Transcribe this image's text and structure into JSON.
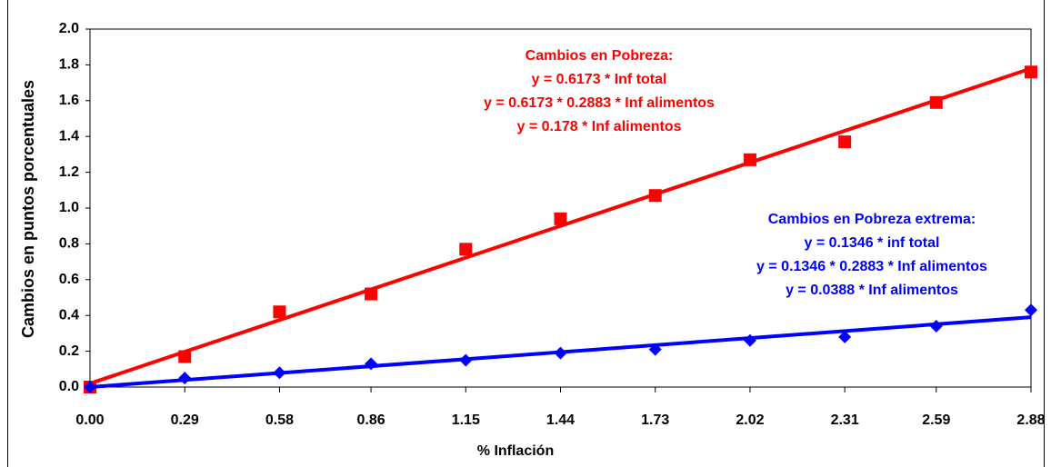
{
  "chart_data": {
    "type": "scatter",
    "x_label": "% Inflación",
    "y_label": "Cambios en puntos porcentuales",
    "x": [
      0,
      0.29,
      0.58,
      0.86,
      1.15,
      1.44,
      1.73,
      2.02,
      2.31,
      2.59,
      2.88
    ],
    "xlim": [
      0,
      2.88
    ],
    "xticks": [
      {
        "value": 0,
        "label": "0.00"
      },
      0.29,
      0.58,
      0.86,
      1.15,
      1.44,
      1.73,
      2.02,
      2.31,
      2.59,
      2.88
    ],
    "ylim": [
      0,
      2
    ],
    "yticks": [
      {
        "value": 0,
        "label": "0.0"
      },
      0.2,
      0.4,
      0.6,
      0.8,
      {
        "value": 1,
        "label": "1.0"
      },
      1.2,
      1.4,
      1.6,
      1.8,
      {
        "value": 2,
        "label": "2.0"
      }
    ],
    "grid": false,
    "series": [
      {
        "name": "Cambios en Pobreza",
        "color": "#ff0000",
        "marker": "square",
        "values": [
          0,
          0.17,
          0.42,
          0.52,
          0.77,
          0.94,
          1.07,
          1.27,
          1.37,
          1.59,
          1.76
        ],
        "trendline": {
          "x": [
            0,
            2.88
          ],
          "values": [
            0.02,
            1.78
          ]
        }
      },
      {
        "name": "Cambios en Pobreza extrema",
        "color": "#0000ff",
        "marker": "diamond",
        "values": [
          0,
          0.05,
          0.08,
          0.13,
          0.15,
          0.19,
          0.21,
          0.26,
          0.28,
          0.34,
          0.43
        ],
        "trendline": {
          "x": [
            0,
            2.88
          ],
          "values": [
            0,
            0.39
          ]
        }
      }
    ],
    "annotations": [
      {
        "color": "#ff0000",
        "lines": [
          "Cambios en Pobreza:",
          "y = 0.6173 * Inf total",
          "y = 0.6173 * 0.2883 * Inf alimentos",
          "y = 0.178 * Inf alimentos"
        ]
      },
      {
        "color": "#0000ff",
        "lines": [
          "Cambios en Pobreza extrema:",
          "y = 0.1346 * inf total",
          "y = 0.1346 * 0.2883 * Inf alimentos",
          "y = 0.0388 * Inf alimentos"
        ]
      }
    ]
  }
}
